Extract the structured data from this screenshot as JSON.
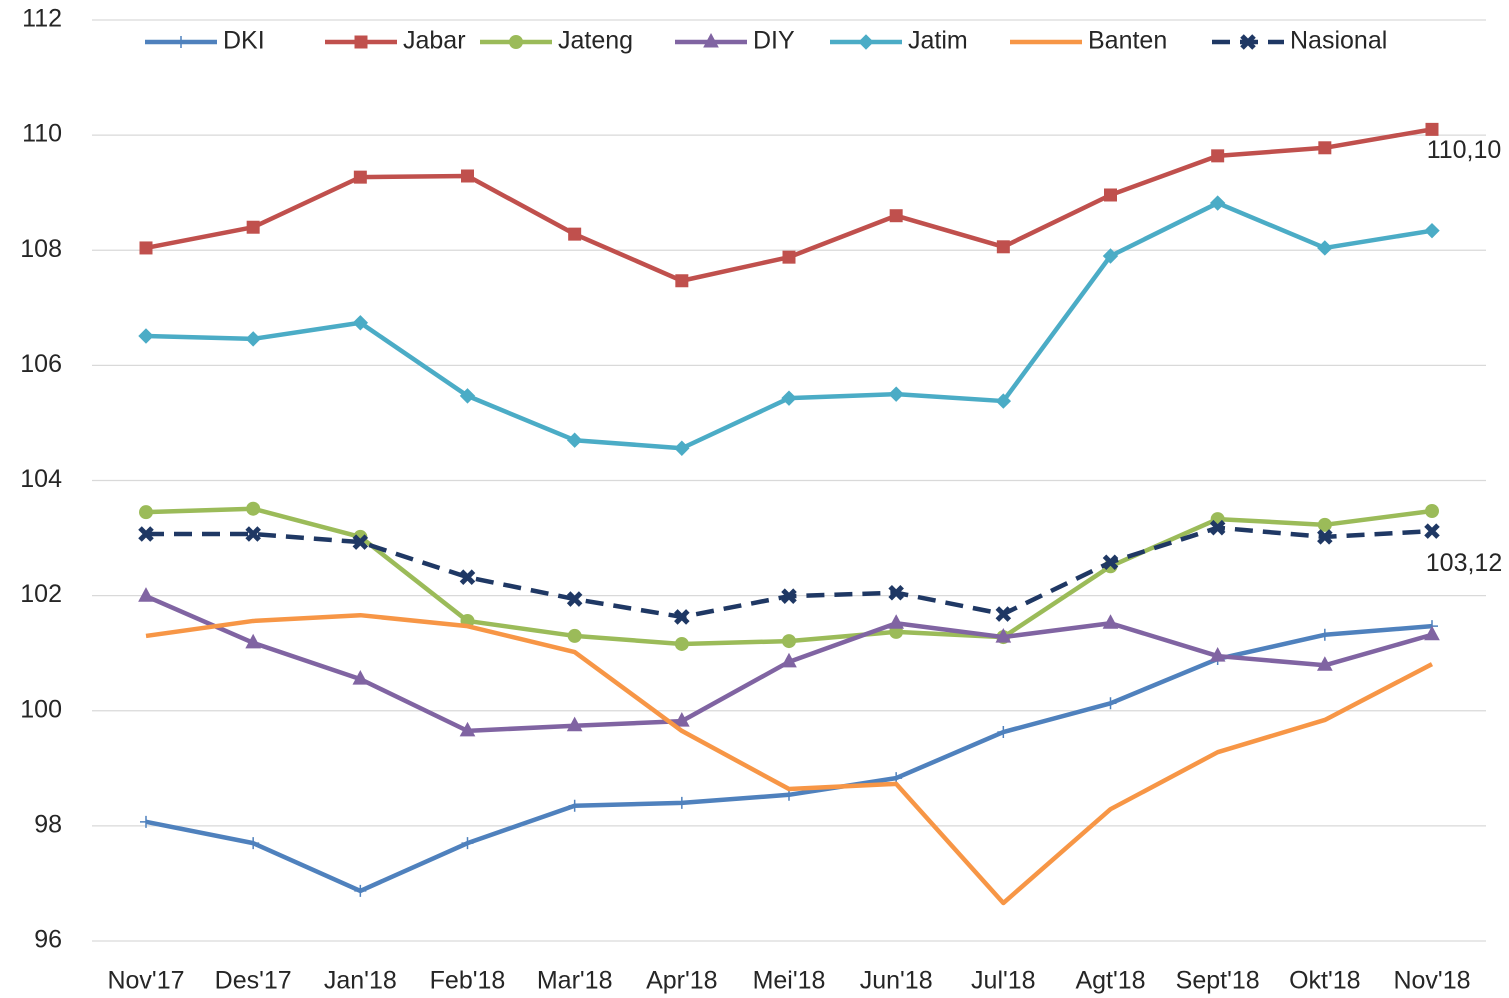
{
  "chart_data": {
    "type": "line",
    "categories": [
      "Nov'17",
      "Des'17",
      "Jan'18",
      "Feb'18",
      "Mar'18",
      "Apr'18",
      "Mei'18",
      "Jun'18",
      "Jul'18",
      "Agt'18",
      "Sept'18",
      "Okt'18",
      "Nov'18"
    ],
    "ylim": [
      96,
      112
    ],
    "yticks": [
      96,
      98,
      100,
      102,
      104,
      106,
      108,
      110,
      112
    ],
    "grid": true,
    "legend": "top",
    "series": [
      {
        "name": "DKI",
        "color": "#4f81bd",
        "marker": "plus",
        "values": [
          98.07,
          97.7,
          96.87,
          97.7,
          98.35,
          98.4,
          98.54,
          98.83,
          99.63,
          100.13,
          100.9,
          101.32,
          101.47
        ]
      },
      {
        "name": "Jabar",
        "color": "#c0504d",
        "marker": "square",
        "values": [
          108.04,
          108.4,
          109.27,
          109.29,
          108.28,
          107.47,
          107.88,
          108.6,
          108.06,
          108.96,
          109.64,
          109.78,
          110.1
        ],
        "value_labels": [
          null,
          null,
          null,
          null,
          null,
          null,
          null,
          null,
          null,
          null,
          null,
          null,
          "110,10"
        ]
      },
      {
        "name": "Jateng",
        "color": "#9bbb59",
        "marker": "circle",
        "values": [
          103.45,
          103.51,
          103.02,
          101.56,
          101.3,
          101.16,
          101.21,
          101.37,
          101.28,
          102.51,
          103.33,
          103.23,
          103.47
        ]
      },
      {
        "name": "DIY",
        "color": "#8064a2",
        "marker": "triangle",
        "values": [
          101.99,
          101.18,
          100.55,
          99.65,
          99.74,
          99.82,
          100.85,
          101.52,
          101.28,
          101.52,
          100.95,
          100.79,
          101.32
        ]
      },
      {
        "name": "Jatim",
        "color": "#4bacc6",
        "marker": "diamond",
        "values": [
          106.51,
          106.46,
          106.74,
          105.47,
          104.7,
          104.56,
          105.43,
          105.5,
          105.38,
          107.9,
          108.82,
          108.04,
          108.34
        ]
      },
      {
        "name": "Banten",
        "color": "#f79646",
        "marker": "none",
        "values": [
          101.3,
          101.56,
          101.66,
          101.47,
          101.02,
          99.65,
          98.64,
          98.73,
          96.66,
          98.29,
          99.28,
          99.84,
          100.81
        ]
      },
      {
        "name": "Nasional",
        "color": "#1f3864",
        "marker": "x",
        "dash": true,
        "values": [
          103.07,
          103.07,
          102.93,
          102.32,
          101.94,
          101.63,
          101.99,
          102.05,
          101.68,
          102.58,
          103.18,
          103.02,
          103.12
        ],
        "value_labels": [
          null,
          null,
          null,
          null,
          null,
          null,
          null,
          null,
          null,
          null,
          null,
          null,
          "103,12"
        ]
      }
    ]
  }
}
